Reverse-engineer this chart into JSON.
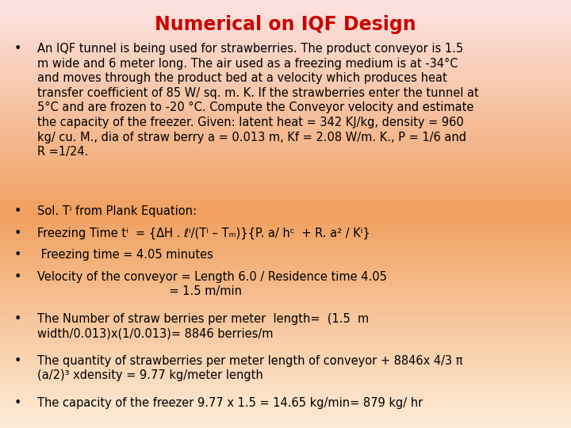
{
  "title": "Numerical on IQF Design",
  "title_color": "#cc0000",
  "title_fontsize": 17,
  "background_top": "#fce4e4",
  "background_mid": "#f0a060",
  "background_bottom": "#fdecd8",
  "text_color": "#000000",
  "bullet_fontsize": 10.5,
  "font_family": "DejaVu Sans",
  "bullet_sym": "•",
  "bullets": [
    {
      "text": "An IQF tunnel is being used for strawberries. The product conveyor is 1.5\nm wide and 6 meter long. The air used as a freezing medium is at -34°C\nand moves through the product bed at a velocity which produces heat\ntransfer coefficient of 85 W/ sq. m. K. If the strawberries enter the tunnel at\n5°C and are frozen to -20 °C. Compute the Conveyor velocity and estimate\nthe capacity of the freezer. Given: latent heat = 342 KJ/kg, density = 960\nkg/ cu. M., dia of straw berry a = 0.013 m, Kf = 2.08 W/m. K., P = 1/6 and\nR =1/24.",
      "nlines": 8
    },
    {
      "text": "Sol. Tⁱ from Plank Equation:",
      "nlines": 1
    },
    {
      "text": "Freezing Time tⁱ  = {ΔH . ℓⁱ/(Tⁱ – Tₘ)}{P. a/ hᶜ  + R. a² / Kⁱ}",
      "nlines": 1
    },
    {
      "text": " Freezing time = 4.05 minutes",
      "nlines": 1
    },
    {
      "text": "Velocity of the conveyor = Length 6.0 / Residence time 4.05\n                                    = 1.5 m/min",
      "nlines": 2
    },
    {
      "text": "The Number of straw berries per meter  length=  (1.5  m\nwidth/0.013)x(1/0.013)= 8846 berries/m",
      "nlines": 2
    },
    {
      "text": "The quantity of strawberries per meter length of conveyor + 8846x 4/3 π\n(a/2)³ xdensity = 9.77 kg/meter length",
      "nlines": 2
    },
    {
      "text": "The capacity of the freezer 9.77 x 1.5 = 14.65 kg/min= 879 kg/ hr",
      "nlines": 1
    }
  ]
}
